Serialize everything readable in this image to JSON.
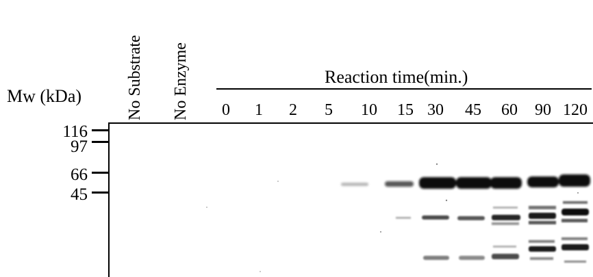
{
  "mw": {
    "title": "Mw (kDa)",
    "markers": [
      {
        "label": "116",
        "kda": 116
      },
      {
        "label": "97",
        "kda": 97
      },
      {
        "label": "66",
        "kda": 66
      },
      {
        "label": "45",
        "kda": 45
      }
    ]
  },
  "controls": [
    {
      "label": "No Substrate"
    },
    {
      "label": "No Enzyme"
    }
  ],
  "time_course": {
    "title": "Reaction time(min.)",
    "lanes": [
      "0",
      "1",
      "2",
      "5",
      "10",
      "15",
      "30",
      "45",
      "60",
      "90",
      "120"
    ]
  },
  "band_color": "#111111"
}
